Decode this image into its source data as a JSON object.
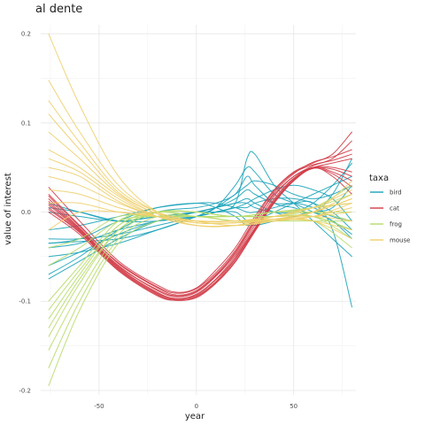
{
  "chart_data": {
    "type": "line",
    "title": "al dente",
    "xlabel": "year",
    "ylabel": "value of interest",
    "xlim": [
      -80,
      82
    ],
    "ylim": [
      -0.205,
      0.21
    ],
    "xticks": [
      -50,
      0,
      50
    ],
    "xtick_labels": [
      "-50",
      "0",
      "50"
    ],
    "yticks": [
      -0.2,
      -0.1,
      0.0,
      0.1,
      0.2
    ],
    "ytick_labels": [
      "-0.2",
      "-0.1",
      "0.0",
      "0.1",
      "0.2"
    ],
    "grid": true,
    "legend": {
      "title": "taxa",
      "position": "right"
    },
    "series_groups": [
      {
        "name": "bird",
        "color": "#1ba3b9",
        "x": [
          -76,
          -60,
          -40,
          -20,
          0,
          10,
          20,
          26,
          30,
          40,
          50,
          60,
          70,
          80
        ],
        "curves": [
          [
            -0.035,
            -0.033,
            -0.03,
            -0.02,
            -0.005,
            0.005,
            0.03,
            0.05,
            0.045,
            0.02,
            0.01,
            0.0,
            -0.01,
            -0.03
          ],
          [
            -0.07,
            -0.05,
            -0.02,
            0.0,
            0.005,
            0.01,
            0.02,
            0.04,
            0.03,
            0.01,
            0.005,
            0.0,
            0.02,
            0.06
          ],
          [
            -0.04,
            -0.035,
            -0.02,
            -0.01,
            0.0,
            0.005,
            0.01,
            0.01,
            0.005,
            0.0,
            0.0,
            0.01,
            0.03,
            0.055
          ],
          [
            0.01,
            0.0,
            -0.01,
            -0.005,
            0.0,
            0.005,
            0.01,
            0.015,
            0.01,
            0.0,
            -0.005,
            0.0,
            0.005,
            0.03
          ],
          [
            -0.03,
            -0.03,
            -0.025,
            -0.015,
            -0.005,
            0.0,
            0.01,
            0.06,
            0.065,
            0.03,
            0.01,
            -0.01,
            -0.03,
            -0.05
          ],
          [
            -0.075,
            -0.055,
            -0.03,
            -0.01,
            0.0,
            0.005,
            0.015,
            0.025,
            0.02,
            0.01,
            0.01,
            0.01,
            -0.02,
            -0.107
          ],
          [
            0.0,
            -0.005,
            -0.01,
            -0.005,
            0.0,
            0.0,
            0.0,
            -0.01,
            -0.015,
            -0.01,
            -0.005,
            0.0,
            -0.01,
            -0.025
          ],
          [
            -0.035,
            -0.03,
            -0.01,
            0.005,
            0.01,
            0.005,
            -0.005,
            -0.015,
            -0.01,
            0.0,
            0.01,
            0.02,
            0.03,
            0.04
          ],
          [
            -0.06,
            -0.045,
            -0.025,
            -0.01,
            -0.005,
            0.0,
            0.005,
            0.01,
            0.015,
            0.025,
            0.03,
            0.025,
            0.015,
            -0.01
          ],
          [
            0.005,
            0.0,
            -0.01,
            -0.01,
            -0.005,
            0.0,
            0.005,
            0.005,
            0.01,
            0.015,
            0.015,
            0.01,
            0.0,
            -0.02
          ],
          [
            -0.05,
            -0.045,
            -0.035,
            -0.02,
            -0.005,
            0.005,
            0.02,
            0.03,
            0.035,
            0.03,
            0.02,
            0.015,
            0.02,
            0.03
          ],
          [
            -0.02,
            -0.015,
            -0.005,
            0.005,
            0.01,
            0.01,
            0.005,
            0.0,
            0.0,
            0.005,
            0.01,
            0.005,
            -0.005,
            -0.01
          ]
        ]
      },
      {
        "name": "cat",
        "color": "#d13b47",
        "x": [
          -76,
          -60,
          -40,
          -20,
          -10,
          0,
          10,
          20,
          30,
          40,
          50,
          60,
          70,
          80
        ],
        "curves": [
          [
            0.028,
            -0.01,
            -0.055,
            -0.082,
            -0.09,
            -0.085,
            -0.065,
            -0.04,
            -0.005,
            0.025,
            0.045,
            0.055,
            0.065,
            0.09
          ],
          [
            0.02,
            -0.015,
            -0.058,
            -0.085,
            -0.093,
            -0.088,
            -0.07,
            -0.045,
            -0.01,
            0.02,
            0.04,
            0.052,
            0.06,
            0.08
          ],
          [
            0.015,
            -0.018,
            -0.06,
            -0.088,
            -0.095,
            -0.09,
            -0.072,
            -0.048,
            -0.015,
            0.018,
            0.04,
            0.05,
            0.055,
            0.06
          ],
          [
            0.01,
            -0.02,
            -0.062,
            -0.09,
            -0.097,
            -0.092,
            -0.075,
            -0.05,
            -0.018,
            0.015,
            0.038,
            0.05,
            0.05,
            0.045
          ],
          [
            0.005,
            -0.022,
            -0.064,
            -0.092,
            -0.098,
            -0.094,
            -0.078,
            -0.053,
            -0.02,
            0.012,
            0.036,
            0.05,
            0.045,
            0.035
          ],
          [
            0.0,
            -0.025,
            -0.066,
            -0.094,
            -0.099,
            -0.096,
            -0.08,
            -0.056,
            -0.022,
            0.01,
            0.035,
            0.05,
            0.04,
            0.02
          ],
          [
            0.012,
            -0.019,
            -0.061,
            -0.087,
            -0.094,
            -0.089,
            -0.071,
            -0.046,
            -0.012,
            0.022,
            0.043,
            0.056,
            0.062,
            0.07
          ],
          [
            0.018,
            -0.016,
            -0.057,
            -0.084,
            -0.091,
            -0.086,
            -0.068,
            -0.043,
            -0.008,
            0.024,
            0.044,
            0.053,
            0.058,
            0.065
          ],
          [
            0.008,
            -0.021,
            -0.063,
            -0.091,
            -0.097,
            -0.093,
            -0.076,
            -0.052,
            -0.019,
            0.013,
            0.037,
            0.049,
            0.048,
            0.04
          ],
          [
            0.003,
            -0.023,
            -0.065,
            -0.093,
            -0.099,
            -0.095,
            -0.079,
            -0.055,
            -0.021,
            0.011,
            0.035,
            0.049,
            0.043,
            0.028
          ]
        ]
      },
      {
        "name": "frog",
        "color": "#b8dc6b",
        "x": [
          -76,
          -60,
          -40,
          -20,
          0,
          20,
          40,
          60,
          80
        ],
        "curves": [
          [
            -0.195,
            -0.11,
            -0.035,
            -0.01,
            -0.005,
            -0.01,
            -0.01,
            -0.01,
            -0.04
          ],
          [
            -0.175,
            -0.1,
            -0.03,
            -0.005,
            -0.005,
            -0.005,
            -0.005,
            -0.005,
            -0.02
          ],
          [
            -0.155,
            -0.09,
            -0.025,
            0.0,
            -0.005,
            -0.005,
            -0.005,
            0.0,
            -0.01
          ],
          [
            -0.14,
            -0.08,
            -0.02,
            0.0,
            0.0,
            -0.005,
            0.0,
            0.0,
            0.0
          ],
          [
            -0.13,
            -0.075,
            -0.02,
            0.0,
            0.0,
            -0.005,
            0.0,
            0.005,
            0.01
          ],
          [
            -0.12,
            -0.07,
            -0.015,
            0.0,
            0.0,
            -0.005,
            0.0,
            0.005,
            0.02
          ],
          [
            -0.11,
            -0.065,
            -0.015,
            0.0,
            0.0,
            -0.005,
            0.0,
            0.005,
            0.03
          ],
          [
            -0.1,
            -0.06,
            -0.01,
            0.0,
            -0.005,
            -0.005,
            -0.005,
            -0.005,
            -0.03
          ],
          [
            -0.06,
            -0.04,
            -0.01,
            -0.005,
            -0.005,
            -0.005,
            -0.005,
            -0.005,
            -0.02
          ],
          [
            -0.04,
            -0.03,
            -0.005,
            -0.005,
            -0.005,
            -0.01,
            -0.01,
            -0.01,
            -0.01
          ]
        ]
      },
      {
        "name": "mouse",
        "color": "#eecf6d",
        "x": [
          -76,
          -60,
          -40,
          -20,
          0,
          20,
          40,
          60,
          80
        ],
        "curves": [
          [
            0.2,
            0.12,
            0.04,
            0.0,
            -0.015,
            -0.015,
            -0.005,
            0.005,
            0.01
          ],
          [
            0.148,
            0.09,
            0.03,
            0.0,
            -0.01,
            -0.015,
            -0.01,
            0.0,
            0.02
          ],
          [
            0.125,
            0.078,
            0.025,
            0.0,
            -0.01,
            -0.01,
            -0.005,
            0.005,
            0.025
          ],
          [
            0.11,
            0.07,
            0.022,
            -0.002,
            -0.012,
            -0.012,
            -0.008,
            0.0,
            0.015
          ],
          [
            0.09,
            0.06,
            0.02,
            -0.002,
            -0.012,
            -0.012,
            -0.008,
            0.0,
            0.015
          ],
          [
            0.07,
            0.05,
            0.018,
            -0.005,
            -0.015,
            -0.015,
            -0.01,
            -0.005,
            0.01
          ],
          [
            0.06,
            0.045,
            0.015,
            -0.005,
            -0.015,
            -0.015,
            -0.01,
            -0.005,
            0.005
          ],
          [
            0.05,
            0.04,
            0.012,
            -0.005,
            -0.012,
            -0.012,
            -0.01,
            -0.005,
            0.0
          ],
          [
            0.04,
            0.03,
            0.01,
            -0.005,
            -0.01,
            -0.01,
            -0.008,
            -0.005,
            -0.01
          ],
          [
            0.025,
            0.02,
            0.005,
            -0.005,
            -0.01,
            -0.01,
            -0.008,
            -0.01,
            -0.02
          ],
          [
            0.01,
            0.01,
            0.0,
            -0.005,
            -0.01,
            -0.01,
            -0.008,
            -0.01,
            -0.03
          ],
          [
            -0.02,
            0.0,
            0.0,
            -0.005,
            -0.01,
            -0.01,
            -0.005,
            0.0,
            0.035
          ]
        ]
      }
    ]
  }
}
